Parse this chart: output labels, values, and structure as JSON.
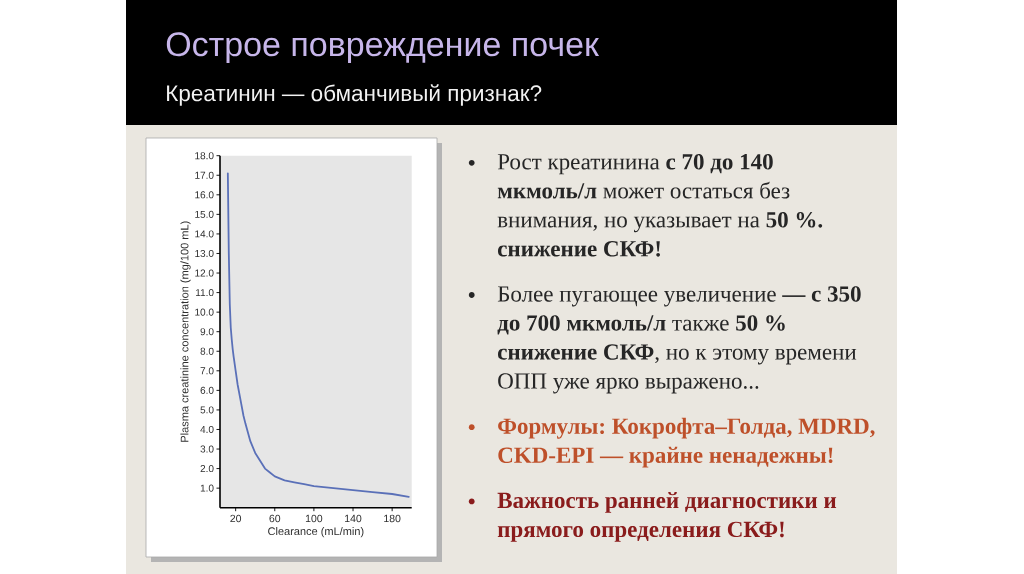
{
  "chart_data": {
    "type": "line",
    "title": "Острое повреждение почек",
    "subtitle": "Креатинин — обманчивый признак?",
    "xlabel": "Clearance (mL/min)",
    "ylabel": "Plasma creatinine concentration (mg/100 mL)",
    "x": [
      12,
      13,
      14,
      15,
      16,
      17,
      18,
      20,
      22,
      25,
      28,
      30,
      35,
      40,
      45,
      50,
      55,
      60,
      70,
      80,
      90,
      100,
      120,
      140,
      160,
      180,
      197
    ],
    "values": [
      17.1,
      13.0,
      10.4,
      9.2,
      8.6,
      8.1,
      7.7,
      7.0,
      6.3,
      5.5,
      4.7,
      4.3,
      3.4,
      2.8,
      2.4,
      2.0,
      1.8,
      1.6,
      1.4,
      1.3,
      1.2,
      1.1,
      1.0,
      0.9,
      0.8,
      0.7,
      0.55
    ],
    "color": "#5a70b8",
    "xlim": [
      4,
      200
    ],
    "ylim": [
      0,
      18
    ],
    "xticks": [
      20,
      60,
      100,
      140,
      180
    ],
    "yticks": [
      {
        "value": 1,
        "label": "1.0"
      },
      {
        "value": 2,
        "label": "2.0"
      },
      {
        "value": 3,
        "label": "3.0"
      },
      {
        "value": 4,
        "label": "4.0"
      },
      {
        "value": 5,
        "label": "5.0"
      },
      {
        "value": 6,
        "label": "6.0"
      },
      {
        "value": 7,
        "label": "7.0"
      },
      {
        "value": 8,
        "label": "8.0"
      },
      {
        "value": 9,
        "label": "9.0"
      },
      {
        "value": 10,
        "label": "10.0"
      },
      {
        "value": 11,
        "label": "11.0"
      },
      {
        "value": 12,
        "label": "12.0"
      },
      {
        "value": 13,
        "label": "13.0"
      },
      {
        "value": 14,
        "label": "14.0"
      },
      {
        "value": 15,
        "label": "15.0"
      },
      {
        "value": 16,
        "label": "16.0"
      },
      {
        "value": 17,
        "label": "17.0"
      },
      {
        "value": 18,
        "label": "18.0"
      }
    ],
    "annotations": [
      "Рост креатинина **с 70 до 140 мкмоль/л** может остаться без внимания, но указывает на **50 %. снижение СКФ!**",
      "Более пугающее увеличение **— с 350 до 700 мкмоль/л** также **50 % снижение СКФ**, но к этому времени ОПП уже ярко выражено...",
      "Формулы: Кокрофта–Голда, MDRD, CKD-EPI — крайне ненадежны!",
      "Важность ранней диагностики и прямого определения СКФ!"
    ]
  }
}
